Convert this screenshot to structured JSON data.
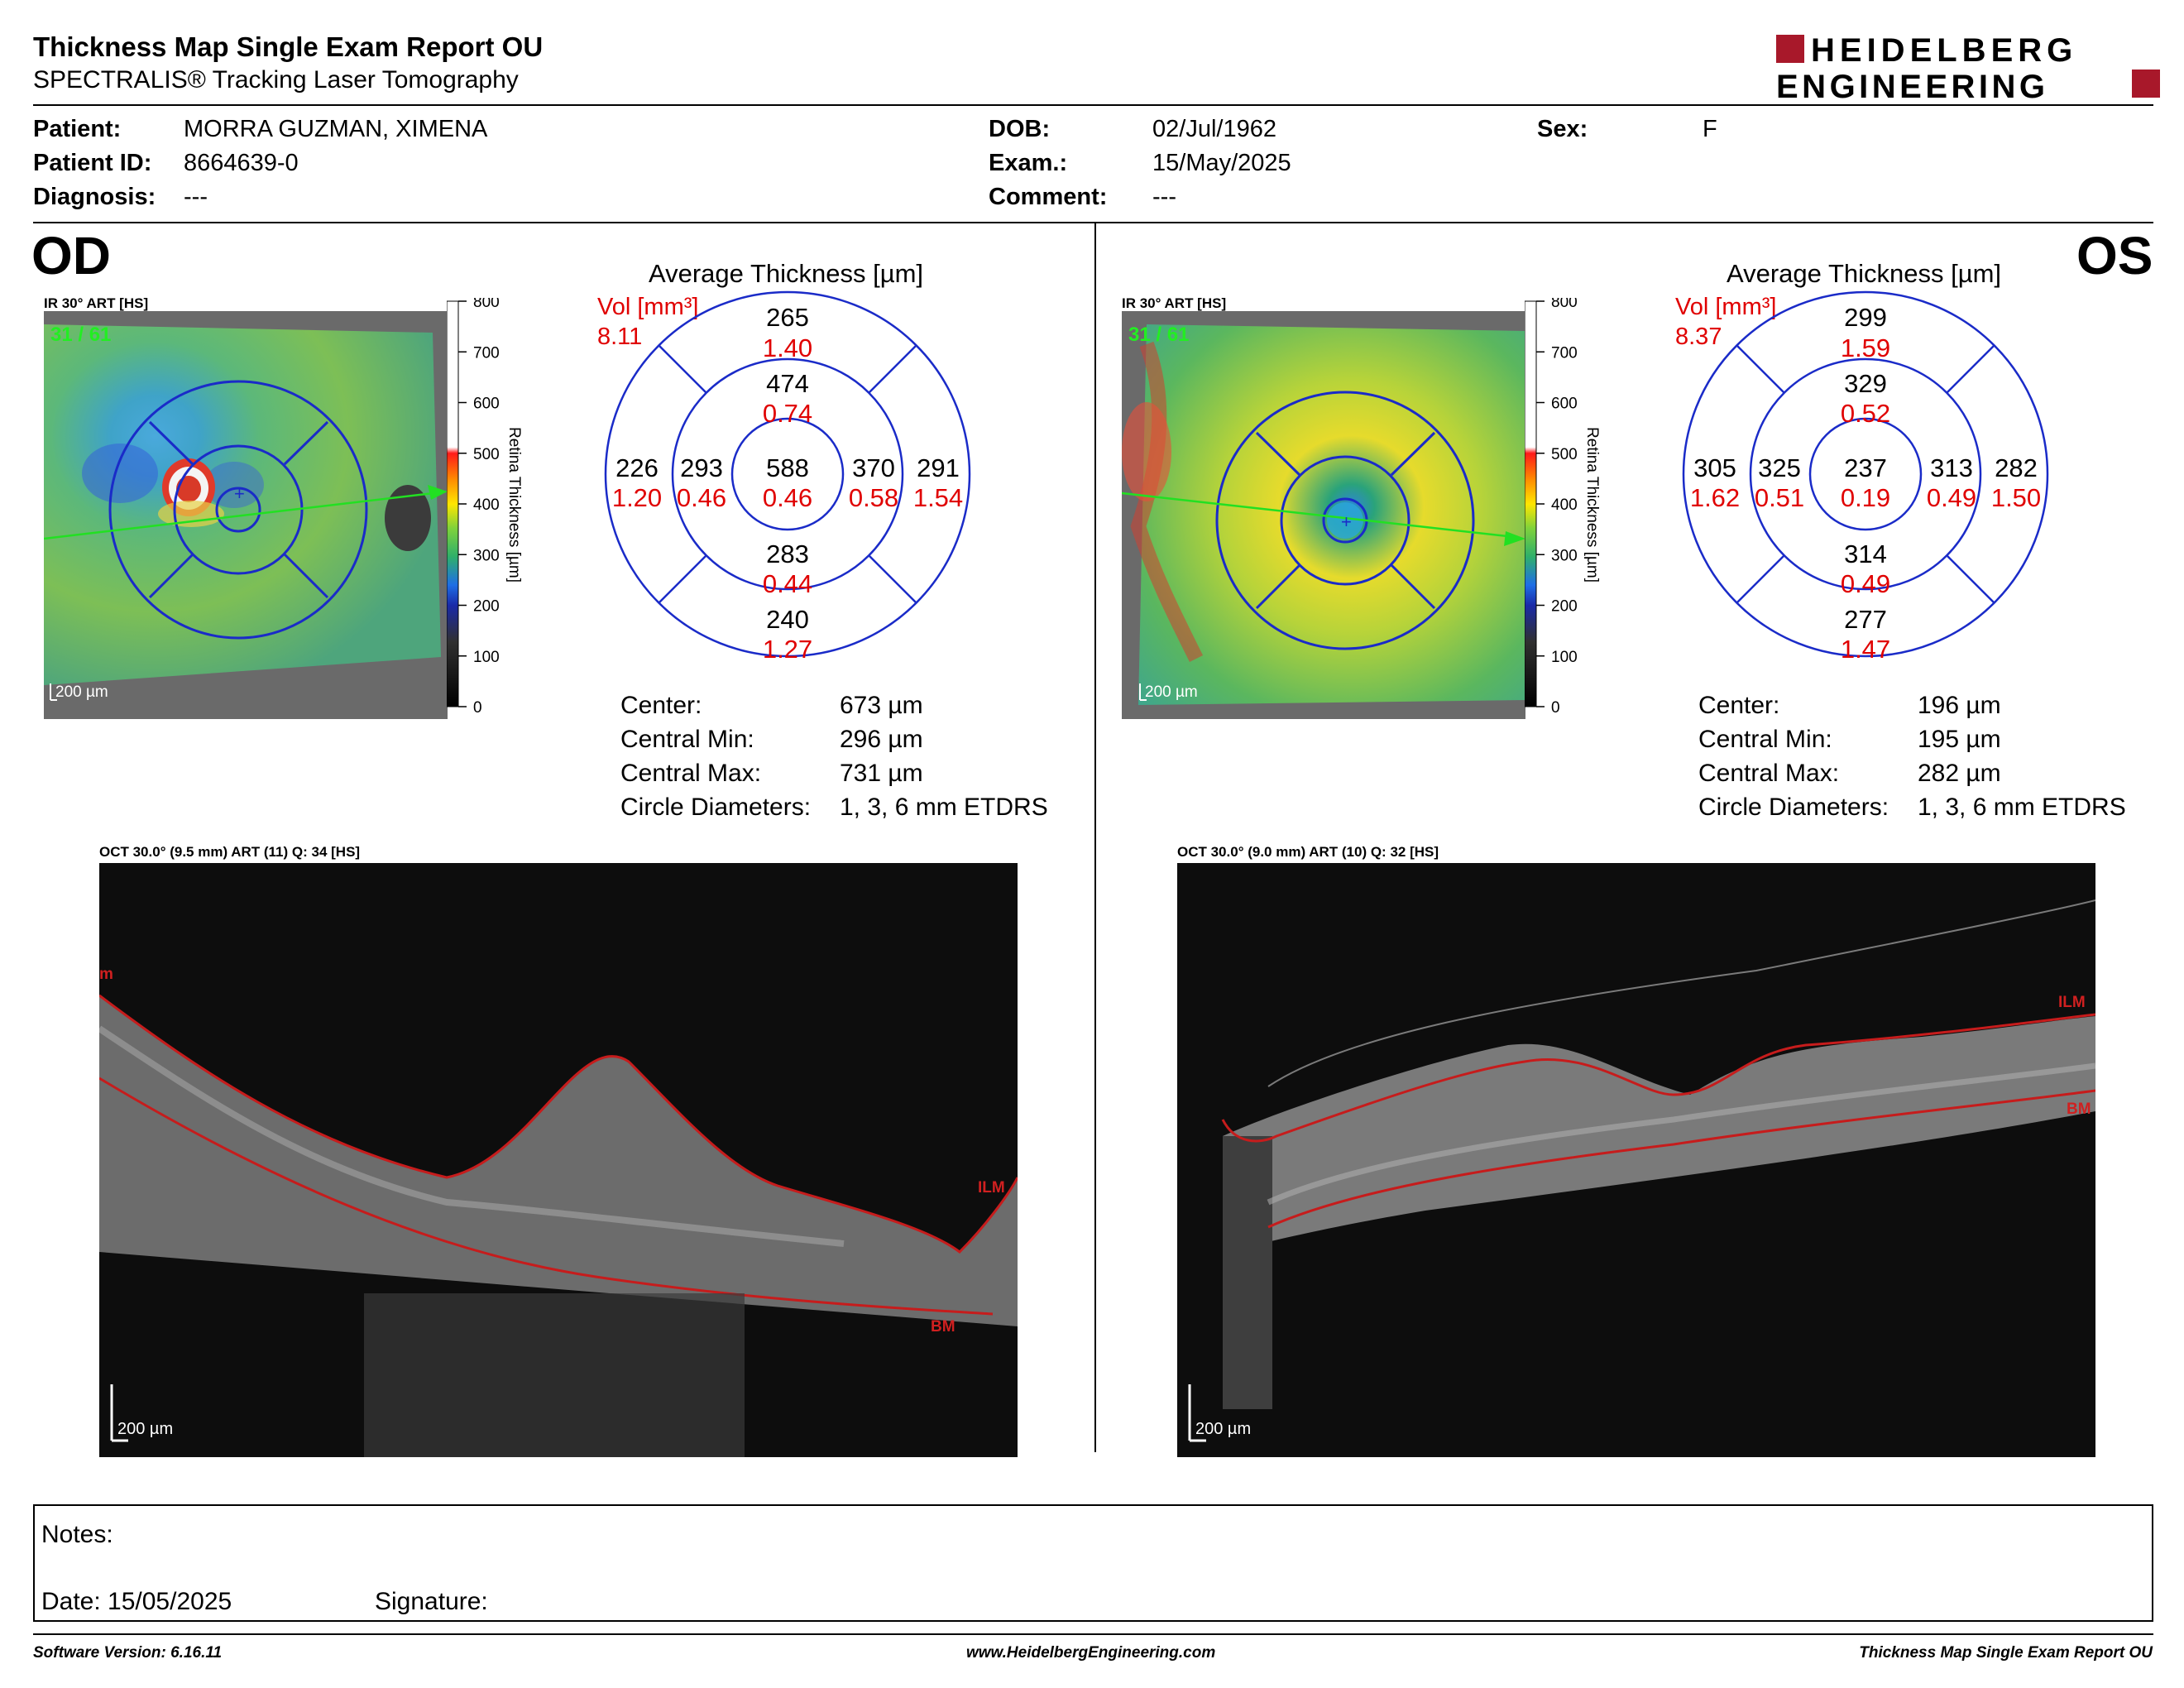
{
  "header": {
    "title": "Thickness Map Single Exam Report OU",
    "subtitle": "SPECTRALIS® Tracking Laser Tomography",
    "logo_line1": "HEIDELBERG",
    "logo_line2": "ENGINEERING"
  },
  "patient": {
    "patient_label": "Patient:",
    "patient_value": "MORRA GUZMAN, XIMENA",
    "id_label": "Patient ID:",
    "id_value": "8664639-0",
    "diagnosis_label": "Diagnosis:",
    "diagnosis_value": "---",
    "dob_label": "DOB:",
    "dob_value": "02/Jul/1962",
    "exam_label": "Exam.:",
    "exam_value": "15/May/2025",
    "comment_label": "Comment:",
    "comment_value": "---",
    "sex_label": "Sex:",
    "sex_value": "F"
  },
  "colorbar": {
    "ticks": [
      "800",
      "700",
      "600",
      "500",
      "400",
      "300",
      "200",
      "100",
      "0"
    ],
    "title": "Retina  Thickness [µm]"
  },
  "od": {
    "eye": "OD",
    "ir_label": "IR 30° ART [HS]",
    "frame": "31 / 61",
    "scale": "200 µm",
    "avg_title": "Average Thickness [µm]",
    "vol_label": "Vol [mm³]",
    "vol_total": "8.11",
    "etdrs": {
      "center": {
        "t": "588",
        "v": "0.46"
      },
      "inner_sup": {
        "t": "474",
        "v": "0.74"
      },
      "inner_inf": {
        "t": "283",
        "v": "0.44"
      },
      "inner_left": {
        "t": "293",
        "v": "0.46"
      },
      "inner_right": {
        "t": "370",
        "v": "0.58"
      },
      "outer_sup": {
        "t": "265",
        "v": "1.40"
      },
      "outer_inf": {
        "t": "240",
        "v": "1.27"
      },
      "outer_left": {
        "t": "226",
        "v": "1.20"
      },
      "outer_right": {
        "t": "291",
        "v": "1.54"
      }
    },
    "stats": [
      {
        "label": "Center:",
        "value": "673 µm"
      },
      {
        "label": "Central Min:",
        "value": "296 µm"
      },
      {
        "label": "Central Max:",
        "value": "731 µm"
      },
      {
        "label": "Circle Diameters:",
        "value": "1, 3, 6 mm ETDRS"
      }
    ],
    "oct_label": "OCT 30.0° (9.5 mm) ART (11) Q: 34 [HS]",
    "oct_scale": "200 µm",
    "oct_ilm": "ILM",
    "oct_bm": "BM",
    "oct_edge": "m"
  },
  "os": {
    "eye": "OS",
    "ir_label": "IR 30° ART [HS]",
    "frame": "31 / 61",
    "scale": "200 µm",
    "avg_title": "Average Thickness [µm]",
    "vol_label": "Vol [mm³]",
    "vol_total": "8.37",
    "etdrs": {
      "center": {
        "t": "237",
        "v": "0.19"
      },
      "inner_sup": {
        "t": "329",
        "v": "0.52"
      },
      "inner_inf": {
        "t": "314",
        "v": "0.49"
      },
      "inner_left": {
        "t": "325",
        "v": "0.51"
      },
      "inner_right": {
        "t": "313",
        "v": "0.49"
      },
      "outer_sup": {
        "t": "299",
        "v": "1.59"
      },
      "outer_inf": {
        "t": "277",
        "v": "1.47"
      },
      "outer_left": {
        "t": "305",
        "v": "1.62"
      },
      "outer_right": {
        "t": "282",
        "v": "1.50"
      }
    },
    "stats": [
      {
        "label": "Center:",
        "value": "196 µm"
      },
      {
        "label": "Central Min:",
        "value": "195 µm"
      },
      {
        "label": "Central Max:",
        "value": "282 µm"
      },
      {
        "label": "Circle Diameters:",
        "value": "1, 3, 6 mm ETDRS"
      }
    ],
    "oct_label": "OCT 30.0° (9.0 mm) ART (10) Q: 32 [HS]",
    "oct_scale": "200 µm",
    "oct_ilm": "ILM",
    "oct_bm": "BM"
  },
  "notes": {
    "notes_label": "Notes:",
    "date_label": "Date: 15/05/2025",
    "signature_label": "Signature:"
  },
  "footer": {
    "software": "Software Version: 6.16.11",
    "website": "www.HeidelbergEngineering.com",
    "report": "Thickness Map Single Exam Report OU"
  }
}
